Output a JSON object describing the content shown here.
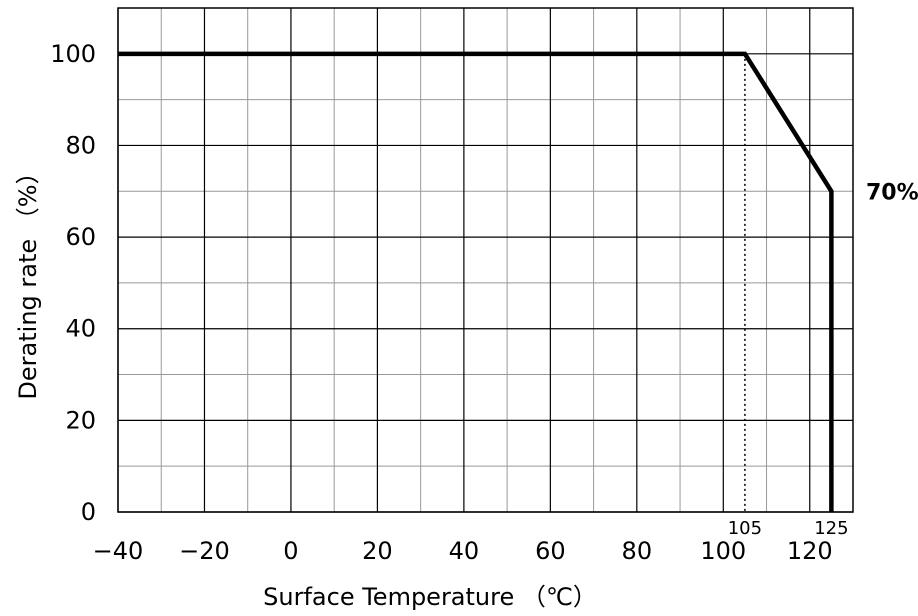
{
  "chart_data": {
    "type": "line",
    "title": "",
    "xlabel": "Surface Temperature （℃）",
    "ylabel": "Derating rate （%）",
    "xlim": [
      -40,
      130
    ],
    "ylim": [
      0,
      110
    ],
    "x_ticks": [
      -40,
      -20,
      0,
      20,
      40,
      60,
      80,
      100,
      120
    ],
    "x_tick_labels": [
      "−40",
      "−20",
      "0",
      "20",
      "40",
      "60",
      "80",
      "100",
      "120"
    ],
    "y_ticks": [
      0,
      20,
      40,
      60,
      80,
      100
    ],
    "y_tick_labels": [
      "0",
      "20",
      "40",
      "60",
      "80",
      "100"
    ],
    "grid": true,
    "series": [
      {
        "x": [
          -40,
          105,
          125,
          125
        ],
        "y": [
          100,
          100,
          70,
          0
        ]
      }
    ],
    "annotations": [
      {
        "text": "105",
        "x": 105,
        "y": 0,
        "kind": "marker-label",
        "dotted_line": true
      },
      {
        "text": "125",
        "x": 125,
        "y": 0,
        "kind": "marker-label"
      },
      {
        "text": "70%",
        "x": 125,
        "y": 70,
        "kind": "value-label"
      }
    ],
    "colors": {
      "line": "#000000",
      "grid_major": "#000000",
      "grid_minor": "#999999"
    }
  }
}
